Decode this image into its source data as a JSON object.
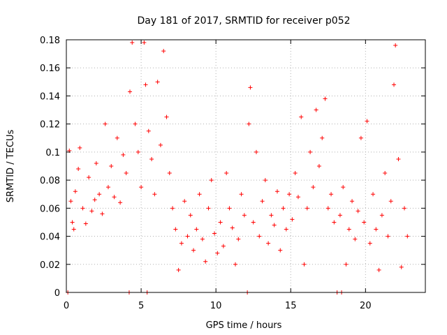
{
  "chart_data": {
    "type": "scatter",
    "title": "Day 181 of 2017, SRMTID for receiver p052",
    "xlabel": "GPS time / hours",
    "ylabel": "SRMTID / TECUs",
    "xlim": [
      0,
      24
    ],
    "ylim": [
      0,
      0.18
    ],
    "xticks": [
      0,
      5,
      10,
      15,
      20
    ],
    "xtick_labels": [
      "0",
      "5",
      "10",
      "15",
      "20"
    ],
    "yticks": [
      0,
      0.02,
      0.04,
      0.06,
      0.08,
      0.1,
      0.12,
      0.14,
      0.16,
      0.18
    ],
    "ytick_labels": [
      "0",
      "0.02",
      "0.04",
      "0.06",
      "0.08",
      "0.1",
      "0.12",
      "0.14",
      "0.16",
      "0.18"
    ],
    "grid": true,
    "marker": "+",
    "series": [
      {
        "name": "SRMTID",
        "color": "#ff0000",
        "points": [
          [
            0.1,
            0.0
          ],
          [
            0.2,
            0.101
          ],
          [
            0.3,
            0.065
          ],
          [
            0.4,
            0.05
          ],
          [
            0.5,
            0.045
          ],
          [
            0.6,
            0.072
          ],
          [
            0.8,
            0.088
          ],
          [
            0.9,
            0.103
          ],
          [
            1.1,
            0.06
          ],
          [
            1.3,
            0.049
          ],
          [
            1.5,
            0.082
          ],
          [
            1.7,
            0.058
          ],
          [
            1.9,
            0.066
          ],
          [
            2.0,
            0.092
          ],
          [
            2.2,
            0.07
          ],
          [
            2.4,
            0.056
          ],
          [
            2.6,
            0.12
          ],
          [
            2.8,
            0.075
          ],
          [
            3.0,
            0.09
          ],
          [
            3.2,
            0.068
          ],
          [
            3.4,
            0.11
          ],
          [
            3.6,
            0.064
          ],
          [
            3.8,
            0.098
          ],
          [
            4.0,
            0.085
          ],
          [
            4.2,
            0.0
          ],
          [
            4.25,
            0.143
          ],
          [
            4.4,
            0.178
          ],
          [
            4.6,
            0.12
          ],
          [
            4.8,
            0.1
          ],
          [
            5.0,
            0.075
          ],
          [
            5.2,
            0.178
          ],
          [
            5.3,
            0.148
          ],
          [
            5.4,
            0.0
          ],
          [
            5.5,
            0.115
          ],
          [
            5.7,
            0.095
          ],
          [
            5.9,
            0.07
          ],
          [
            6.1,
            0.15
          ],
          [
            6.3,
            0.105
          ],
          [
            6.5,
            0.172
          ],
          [
            6.7,
            0.125
          ],
          [
            6.9,
            0.085
          ],
          [
            7.1,
            0.06
          ],
          [
            7.3,
            0.045
          ],
          [
            7.5,
            0.016
          ],
          [
            7.7,
            0.035
          ],
          [
            7.9,
            0.065
          ],
          [
            8.1,
            0.04
          ],
          [
            8.3,
            0.055
          ],
          [
            8.5,
            0.03
          ],
          [
            8.7,
            0.045
          ],
          [
            8.9,
            0.07
          ],
          [
            9.1,
            0.038
          ],
          [
            9.3,
            0.022
          ],
          [
            9.5,
            0.06
          ],
          [
            9.7,
            0.08
          ],
          [
            9.9,
            0.042
          ],
          [
            10.1,
            0.028
          ],
          [
            10.3,
            0.05
          ],
          [
            10.5,
            0.033
          ],
          [
            10.7,
            0.085
          ],
          [
            10.9,
            0.06
          ],
          [
            11.1,
            0.046
          ],
          [
            11.3,
            0.02
          ],
          [
            11.5,
            0.038
          ],
          [
            11.7,
            0.07
          ],
          [
            11.9,
            0.055
          ],
          [
            12.1,
            0.0
          ],
          [
            12.2,
            0.12
          ],
          [
            12.3,
            0.146
          ],
          [
            12.5,
            0.05
          ],
          [
            12.7,
            0.1
          ],
          [
            12.9,
            0.04
          ],
          [
            13.1,
            0.065
          ],
          [
            13.3,
            0.08
          ],
          [
            13.5,
            0.035
          ],
          [
            13.7,
            0.055
          ],
          [
            13.9,
            0.048
          ],
          [
            14.1,
            0.072
          ],
          [
            14.3,
            0.03
          ],
          [
            14.5,
            0.06
          ],
          [
            14.7,
            0.045
          ],
          [
            14.9,
            0.07
          ],
          [
            15.1,
            0.052
          ],
          [
            15.3,
            0.085
          ],
          [
            15.5,
            0.068
          ],
          [
            15.7,
            0.125
          ],
          [
            15.9,
            0.02
          ],
          [
            16.1,
            0.06
          ],
          [
            16.3,
            0.1
          ],
          [
            16.5,
            0.075
          ],
          [
            16.7,
            0.13
          ],
          [
            16.9,
            0.09
          ],
          [
            17.1,
            0.11
          ],
          [
            17.3,
            0.138
          ],
          [
            17.5,
            0.06
          ],
          [
            17.7,
            0.07
          ],
          [
            17.9,
            0.05
          ],
          [
            18.1,
            0.0
          ],
          [
            18.3,
            0.055
          ],
          [
            18.4,
            0.0
          ],
          [
            18.5,
            0.075
          ],
          [
            18.7,
            0.02
          ],
          [
            18.9,
            0.045
          ],
          [
            19.1,
            0.065
          ],
          [
            19.3,
            0.038
          ],
          [
            19.5,
            0.058
          ],
          [
            19.7,
            0.11
          ],
          [
            19.9,
            0.05
          ],
          [
            20.1,
            0.122
          ],
          [
            20.3,
            0.035
          ],
          [
            20.5,
            0.07
          ],
          [
            20.7,
            0.045
          ],
          [
            20.9,
            0.016
          ],
          [
            21.1,
            0.055
          ],
          [
            21.3,
            0.085
          ],
          [
            21.5,
            0.04
          ],
          [
            21.7,
            0.065
          ],
          [
            21.9,
            0.148
          ],
          [
            22.0,
            0.176
          ],
          [
            22.2,
            0.095
          ],
          [
            22.4,
            0.018
          ],
          [
            22.6,
            0.06
          ],
          [
            22.8,
            0.04
          ]
        ]
      }
    ]
  }
}
